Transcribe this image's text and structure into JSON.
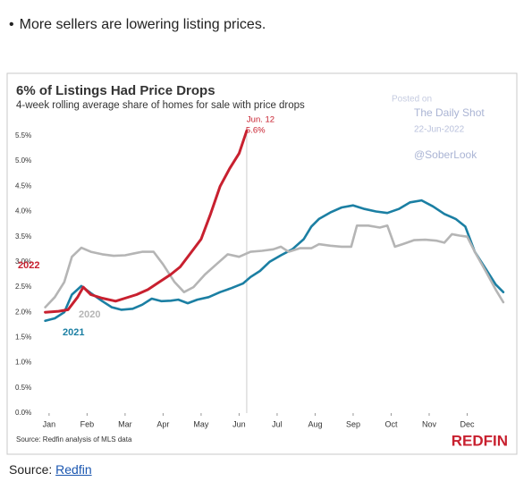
{
  "bullet": "More sellers are lowering listing prices.",
  "chart_data": {
    "type": "line",
    "title": "6% of Listings Had Price Drops",
    "subtitle": "4-week rolling average share of homes for sale with price drops",
    "annotation": {
      "date": "Jun. 12",
      "value": "5.6%"
    },
    "watermark": [
      "Posted on",
      "The Daily Shot",
      "22-Jun-2022",
      "@SoberLook"
    ],
    "footnote": "Source: Redfin analysis of MLS data",
    "brand": "REDFIN",
    "xlim": [
      -0.35,
      12.0
    ],
    "xticks": [
      {
        "value": 0,
        "label": "Jan"
      },
      {
        "value": 1,
        "label": "Feb"
      },
      {
        "value": 2,
        "label": "Mar"
      },
      {
        "value": 3,
        "label": "Apr"
      },
      {
        "value": 4,
        "label": "May"
      },
      {
        "value": 5,
        "label": "Jun"
      },
      {
        "value": 6,
        "label": "Jul"
      },
      {
        "value": 7,
        "label": "Aug"
      },
      {
        "value": 8,
        "label": "Sep"
      },
      {
        "value": 9,
        "label": "Oct"
      },
      {
        "value": 10,
        "label": "Nov"
      },
      {
        "value": 11,
        "label": "Dec"
      }
    ],
    "ylim": [
      0,
      5.8
    ],
    "yticks": [
      {
        "value": 0,
        "label": "0.0%"
      },
      {
        "value": 0.5,
        "label": "0.5%"
      },
      {
        "value": 1,
        "label": "1.0%"
      },
      {
        "value": 1.5,
        "label": "1.5%"
      },
      {
        "value": 2,
        "label": "2.0%"
      },
      {
        "value": 2.5,
        "label": "2.5%"
      },
      {
        "value": 3,
        "label": "3.0%"
      },
      {
        "value": 3.5,
        "label": "3.5%"
      },
      {
        "value": 4,
        "label": "4.0%"
      },
      {
        "value": 4.5,
        "label": "4.5%"
      },
      {
        "value": 5,
        "label": "5.0%"
      },
      {
        "value": 5.5,
        "label": "5.5%"
      }
    ],
    "grid": false,
    "series": [
      {
        "name": "2022",
        "color": "#c8202f",
        "x": [
          -0.1,
          0.25,
          0.5,
          0.75,
          0.9,
          1.1,
          1.4,
          1.75,
          2.0,
          2.3,
          2.6,
          2.9,
          3.2,
          3.45,
          3.7,
          4.0,
          4.25,
          4.5,
          4.75,
          5.0,
          5.2
        ],
        "values": [
          2.0,
          2.02,
          2.05,
          2.3,
          2.5,
          2.35,
          2.28,
          2.22,
          2.28,
          2.35,
          2.45,
          2.6,
          2.75,
          2.9,
          3.15,
          3.45,
          3.95,
          4.5,
          4.85,
          5.15,
          5.6
        ]
      },
      {
        "name": "2020",
        "color": "#b5b5b5",
        "x": [
          -0.1,
          0.15,
          0.4,
          0.6,
          0.85,
          1.1,
          1.4,
          1.7,
          2.0,
          2.25,
          2.45,
          2.75,
          3.0,
          3.3,
          3.55,
          3.8,
          4.1,
          4.4,
          4.7,
          5.0,
          5.3,
          5.6,
          5.9,
          6.1,
          6.3,
          6.6,
          6.9,
          7.1,
          7.4,
          7.7,
          7.95,
          8.1,
          8.4,
          8.7,
          8.9,
          9.1,
          9.3,
          9.6,
          9.9,
          10.2,
          10.4,
          10.6,
          10.8,
          11.0,
          11.2,
          11.5,
          11.75,
          11.95
        ],
        "values": [
          2.1,
          2.3,
          2.6,
          3.1,
          3.28,
          3.2,
          3.15,
          3.12,
          3.13,
          3.17,
          3.2,
          3.2,
          2.95,
          2.6,
          2.4,
          2.5,
          2.75,
          2.95,
          3.15,
          3.1,
          3.2,
          3.22,
          3.25,
          3.3,
          3.2,
          3.27,
          3.27,
          3.35,
          3.32,
          3.3,
          3.3,
          3.72,
          3.72,
          3.68,
          3.72,
          3.3,
          3.35,
          3.43,
          3.44,
          3.42,
          3.38,
          3.55,
          3.52,
          3.5,
          3.2,
          2.8,
          2.45,
          2.2
        ]
      },
      {
        "name": "2021",
        "color": "#1b7fa3",
        "x": [
          -0.1,
          0.15,
          0.4,
          0.6,
          0.85,
          1.1,
          1.4,
          1.65,
          1.9,
          2.2,
          2.45,
          2.7,
          2.95,
          3.2,
          3.4,
          3.65,
          3.9,
          4.2,
          4.5,
          4.8,
          5.1,
          5.3,
          5.55,
          5.8,
          6.1,
          6.4,
          6.7,
          6.9,
          7.1,
          7.4,
          7.7,
          8.0,
          8.3,
          8.6,
          8.9,
          9.2,
          9.5,
          9.8,
          10.1,
          10.4,
          10.7,
          10.95,
          11.2,
          11.5,
          11.75,
          11.95
        ],
        "values": [
          1.83,
          1.88,
          2.0,
          2.35,
          2.52,
          2.38,
          2.22,
          2.1,
          2.05,
          2.07,
          2.15,
          2.27,
          2.22,
          2.23,
          2.25,
          2.18,
          2.25,
          2.3,
          2.4,
          2.48,
          2.57,
          2.7,
          2.82,
          3.0,
          3.13,
          3.25,
          3.45,
          3.7,
          3.85,
          3.98,
          4.08,
          4.12,
          4.05,
          4.0,
          3.97,
          4.05,
          4.18,
          4.22,
          4.1,
          3.95,
          3.85,
          3.7,
          3.2,
          2.85,
          2.55,
          2.4
        ]
      }
    ]
  },
  "source": {
    "label": "Source:",
    "link": "Redfin"
  }
}
